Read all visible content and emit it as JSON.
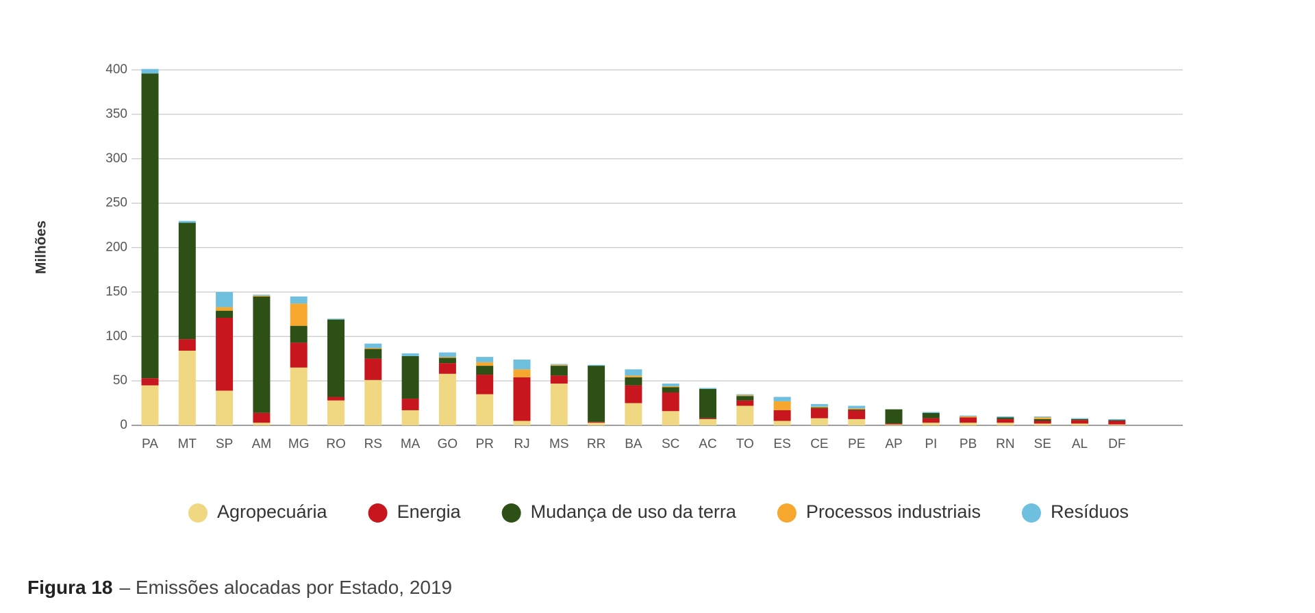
{
  "chart_data": {
    "type": "stacked_bar",
    "y_label": "Milhões",
    "caption_label": "Figura 18",
    "caption": "– Emissões alocadas por Estado, 2019",
    "categories": [
      "PA",
      "MT",
      "SP",
      "AM",
      "MG",
      "RO",
      "RS",
      "MA",
      "GO",
      "PR",
      "RJ",
      "MS",
      "RR",
      "BA",
      "SC",
      "AC",
      "TO",
      "ES",
      "CE",
      "PE",
      "AP",
      "PI",
      "PB",
      "RN",
      "SE",
      "AL",
      "DF"
    ],
    "series": [
      {
        "name": "Agropecuária",
        "color": "#f0d882",
        "values": [
          45,
          84,
          39,
          3,
          65,
          28,
          51,
          17,
          58,
          35,
          5,
          47,
          3,
          25,
          16,
          7,
          22,
          5,
          8,
          7,
          1,
          3,
          3,
          3,
          2,
          2,
          1
        ]
      },
      {
        "name": "Energia",
        "color": "#c8161e",
        "values": [
          8,
          13,
          82,
          11,
          28,
          4,
          24,
          13,
          12,
          22,
          49,
          9,
          1,
          20,
          21,
          1,
          6,
          12,
          11,
          10,
          1,
          5,
          6,
          4,
          3,
          4,
          4
        ]
      },
      {
        "name": "Mudança de uso da terra",
        "color": "#2d5016",
        "values": [
          343,
          131,
          8,
          131,
          19,
          87,
          11,
          48,
          6,
          10,
          0,
          11,
          63,
          9,
          6,
          33,
          5,
          0,
          1,
          1,
          16,
          6,
          0,
          2,
          2,
          1,
          1
        ]
      },
      {
        "name": "Processos industriais",
        "color": "#f6a82e",
        "values": [
          0,
          0,
          4,
          1,
          25,
          0,
          1,
          0,
          1,
          4,
          9,
          1,
          0,
          2,
          1,
          0,
          1,
          10,
          1,
          1,
          0,
          0,
          1,
          0,
          2,
          0,
          0
        ]
      },
      {
        "name": "Resíduos",
        "color": "#6fbfdf",
        "values": [
          5,
          2,
          17,
          1,
          8,
          1,
          5,
          3,
          5,
          6,
          11,
          1,
          1,
          7,
          3,
          1,
          1,
          5,
          3,
          3,
          0,
          1,
          1,
          1,
          1,
          1,
          1
        ]
      }
    ],
    "ylim": [
      0,
      400
    ],
    "yticks": [
      0,
      50,
      100,
      150,
      200,
      250,
      300,
      350,
      400
    ],
    "grid": true
  }
}
